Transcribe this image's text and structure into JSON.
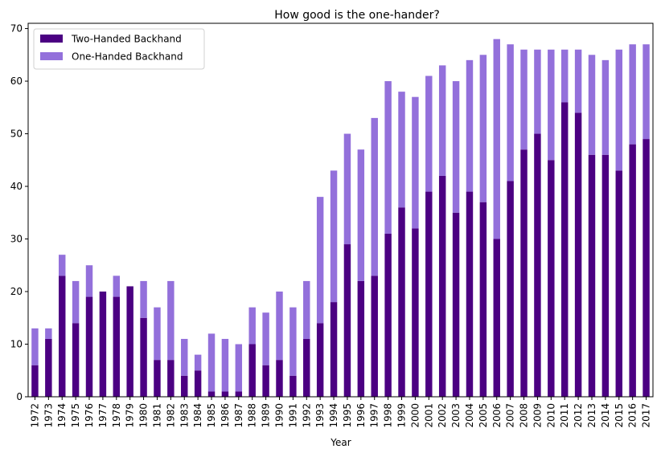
{
  "chart_data": {
    "type": "bar",
    "stacked": true,
    "title": "How good is the one-hander?",
    "xlabel": "Year",
    "ylabel": "",
    "ylim": [
      0,
      71
    ],
    "yticks": [
      0,
      10,
      20,
      30,
      40,
      50,
      60,
      70
    ],
    "grid": false,
    "legend_position": "top-left",
    "categories": [
      "1972",
      "1973",
      "1974",
      "1975",
      "1976",
      "1977",
      "1978",
      "1979",
      "1980",
      "1981",
      "1982",
      "1983",
      "1984",
      "1985",
      "1986",
      "1987",
      "1988",
      "1989",
      "1990",
      "1991",
      "1992",
      "1993",
      "1994",
      "1995",
      "1996",
      "1997",
      "1998",
      "1999",
      "2000",
      "2001",
      "2002",
      "2003",
      "2004",
      "2005",
      "2006",
      "2007",
      "2008",
      "2009",
      "2010",
      "2011",
      "2012",
      "2013",
      "2014",
      "2015",
      "2016",
      "2017"
    ],
    "series": [
      {
        "name": "Two-Handed Backhand",
        "color": "#4b0082",
        "values": [
          6,
          11,
          23,
          14,
          19,
          20,
          19,
          21,
          15,
          7,
          7,
          4,
          5,
          1,
          1,
          1,
          10,
          6,
          7,
          4,
          11,
          14,
          18,
          29,
          22,
          23,
          31,
          36,
          32,
          39,
          42,
          35,
          39,
          37,
          30,
          41,
          47,
          50,
          45,
          56,
          54,
          46,
          46,
          43,
          48,
          49
        ]
      },
      {
        "name": "One-Handed Backhand",
        "color": "#9370db",
        "values": [
          7,
          2,
          4,
          8,
          6,
          0,
          4,
          0,
          7,
          10,
          15,
          7,
          3,
          11,
          10,
          9,
          7,
          10,
          13,
          13,
          11,
          24,
          25,
          21,
          25,
          30,
          29,
          22,
          25,
          22,
          21,
          25,
          25,
          28,
          38,
          26,
          19,
          16,
          21,
          10,
          12,
          19,
          18,
          23,
          19,
          18
        ]
      }
    ]
  }
}
